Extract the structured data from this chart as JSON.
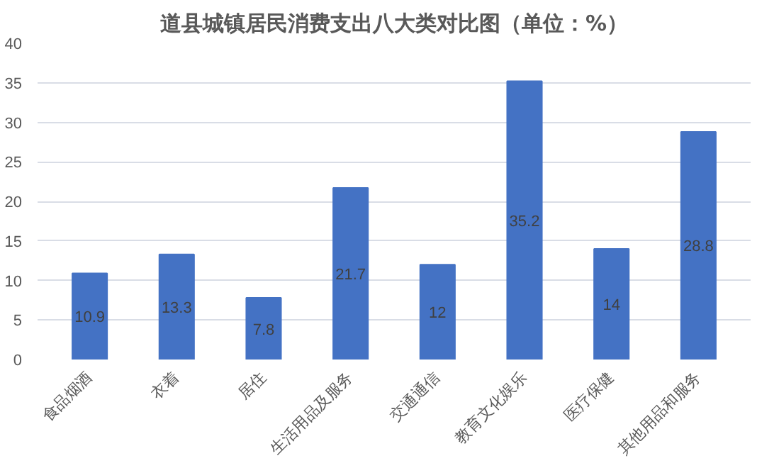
{
  "chart_data": {
    "type": "bar",
    "title": "道县城镇居民消费支出八大类对比图（单位：%）",
    "categories": [
      "食品烟酒",
      "衣着",
      "居住",
      "生活用品及服务",
      "交通通信",
      "教育文化娱乐",
      "医疗保健",
      "其他用品和服务"
    ],
    "values": [
      10.9,
      13.3,
      7.8,
      21.7,
      12,
      35.2,
      14,
      28.8
    ],
    "color": "#4472c4",
    "ylim": [
      0,
      40
    ],
    "yticks": [
      0,
      5,
      10,
      15,
      20,
      25,
      30,
      35,
      40
    ],
    "grid": "y",
    "data_labels": true
  }
}
